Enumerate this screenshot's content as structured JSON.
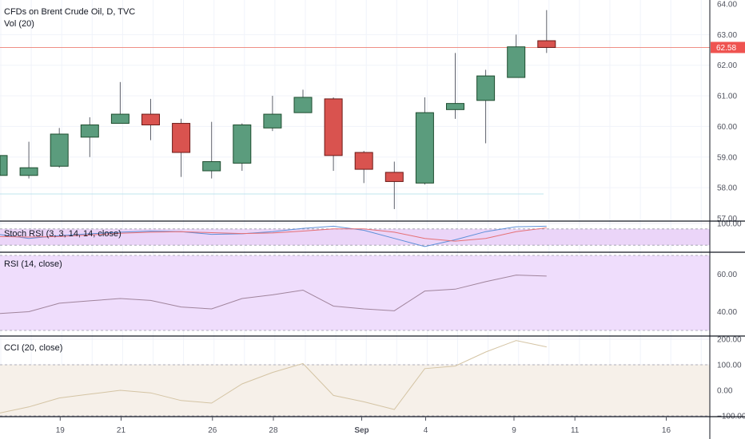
{
  "header": {
    "title": "CFDs on Brent Crude Oil, D, TVC",
    "volume_label": "Vol (20)"
  },
  "colors": {
    "up": "#5b9c7d",
    "up_border": "#1e4d2f",
    "down": "#d9534f",
    "down_border": "#6b1a17",
    "price_line": "#ef8f85",
    "price_badge": "#ef5350",
    "stoch_bg": "#ebd5f8",
    "rsi_bg": "#efddfc",
    "cci_bg": "#f6f0e9",
    "stoch_k": "#5d8fd8",
    "stoch_d": "#e56f74",
    "rsi_line": "#a0849c",
    "cci_line": "#d4c4a4"
  },
  "chart_data": [
    {
      "type": "candlestick",
      "title": "CFDs on Brent Crude Oil, D, TVC",
      "x_tick_labels": [
        "19",
        "21",
        "26",
        "28",
        "Sep",
        "4",
        "9",
        "11",
        "16"
      ],
      "y_ticks": [
        "57.00",
        "58.00",
        "59.00",
        "60.00",
        "61.00",
        "62.00",
        "63.00",
        "64.00"
      ],
      "ylim": [
        56.95,
        64.1
      ],
      "last_price": 62.58,
      "last_price_label": "62.58",
      "candles": [
        {
          "open": 58.4,
          "high": 59.05,
          "low": 58.05,
          "close": 59.05
        },
        {
          "open": 58.4,
          "high": 59.5,
          "low": 58.3,
          "close": 58.65
        },
        {
          "open": 58.7,
          "high": 59.95,
          "low": 58.65,
          "close": 59.75
        },
        {
          "open": 59.65,
          "high": 60.3,
          "low": 59.0,
          "close": 60.05
        },
        {
          "open": 60.1,
          "high": 61.45,
          "low": 60.1,
          "close": 60.4
        },
        {
          "open": 60.4,
          "high": 60.9,
          "low": 59.55,
          "close": 60.05
        },
        {
          "open": 60.1,
          "high": 60.25,
          "low": 58.35,
          "close": 59.15
        },
        {
          "open": 58.55,
          "high": 60.15,
          "low": 58.3,
          "close": 58.85
        },
        {
          "open": 58.8,
          "high": 60.1,
          "low": 58.55,
          "close": 60.05
        },
        {
          "open": 59.95,
          "high": 61.0,
          "low": 59.85,
          "close": 60.4
        },
        {
          "open": 60.45,
          "high": 61.2,
          "low": 60.45,
          "close": 60.95
        },
        {
          "open": 60.9,
          "high": 60.95,
          "low": 58.55,
          "close": 59.05
        },
        {
          "open": 59.15,
          "high": 59.2,
          "low": 58.15,
          "close": 58.6
        },
        {
          "open": 58.5,
          "high": 58.85,
          "low": 57.3,
          "close": 58.2
        },
        {
          "open": 58.15,
          "high": 60.95,
          "low": 58.1,
          "close": 60.45
        },
        {
          "open": 60.55,
          "high": 62.4,
          "low": 60.25,
          "close": 60.75
        },
        {
          "open": 60.85,
          "high": 61.85,
          "low": 59.45,
          "close": 61.65
        },
        {
          "open": 61.6,
          "high": 63.0,
          "low": 61.6,
          "close": 62.6
        },
        {
          "open": 62.8,
          "high": 63.8,
          "low": 62.4,
          "close": 62.58
        }
      ]
    },
    {
      "type": "line",
      "title": "Stoch RSI (3, 3, 14, 14, close)",
      "ylim": [
        0,
        100
      ],
      "y_ticks": [
        "100.00"
      ],
      "bands": [
        80,
        20
      ],
      "series": [
        {
          "values": [
            60,
            45,
            55,
            62,
            68,
            72,
            70,
            60,
            62,
            70,
            82,
            90,
            75,
            45,
            15,
            40,
            70,
            88,
            90
          ]
        },
        {
          "values": [
            52,
            50,
            52,
            58,
            64,
            68,
            70,
            66,
            63,
            65,
            72,
            80,
            80,
            68,
            45,
            35,
            45,
            70,
            84
          ]
        }
      ]
    },
    {
      "type": "line",
      "title": "RSI (14, close)",
      "ylim": [
        30,
        70
      ],
      "y_ticks": [
        "60.00",
        "40.00"
      ],
      "bands": [
        70,
        30
      ],
      "series": [
        {
          "values": [
            39,
            40,
            44.5,
            45.8,
            47,
            46,
            42.5,
            41.5,
            47,
            49,
            51.5,
            43,
            41.5,
            40.5,
            51,
            52,
            56,
            59.5,
            59
          ]
        }
      ]
    },
    {
      "type": "line",
      "title": "CCI (20, close)",
      "ylim": [
        -100,
        200
      ],
      "y_ticks": [
        "200.00",
        "100.00",
        "0.00",
        "−100.00"
      ],
      "bands": [
        100,
        -100
      ],
      "series": [
        {
          "values": [
            -90,
            -65,
            -30,
            -15,
            0,
            -10,
            -40,
            -50,
            25,
            70,
            105,
            -20,
            -45,
            -75,
            85,
            95,
            150,
            195,
            170
          ]
        }
      ]
    }
  ]
}
